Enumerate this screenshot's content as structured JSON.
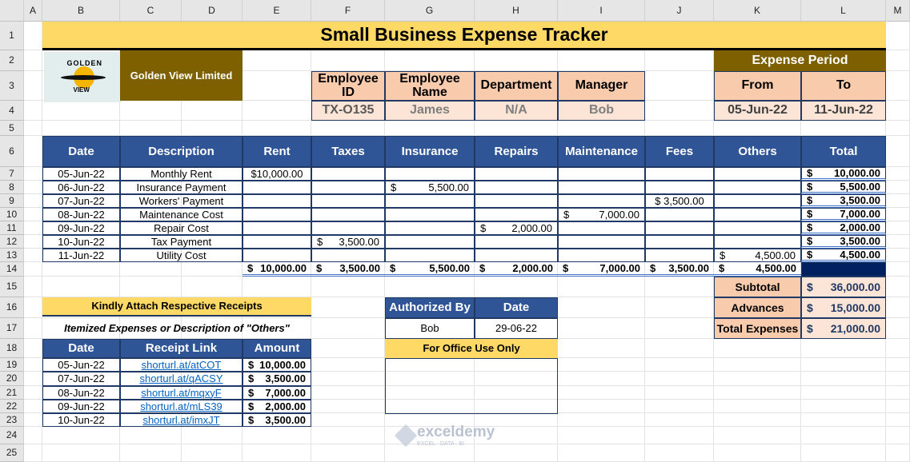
{
  "columns": [
    "A",
    "B",
    "C",
    "D",
    "E",
    "F",
    "G",
    "H",
    "I",
    "J",
    "K",
    "L",
    "M"
  ],
  "rows": [
    "1",
    "2",
    "3",
    "4",
    "5",
    "6",
    "7",
    "8",
    "9",
    "10",
    "11",
    "12",
    "13",
    "14",
    "15",
    "16",
    "17",
    "18",
    "19",
    "20",
    "21",
    "22",
    "23",
    "24",
    "25"
  ],
  "title": "Small Business Expense Tracker",
  "company": {
    "logo_text": "GOLDEN VIEW",
    "name": "Golden View Limited"
  },
  "employee": {
    "headers": [
      "Employee ID",
      "Employee Name",
      "Department",
      "Manager"
    ],
    "values": [
      "TX-O135",
      "James",
      "N/A",
      "Bob"
    ]
  },
  "period": {
    "title": "Expense Period",
    "from_label": "From",
    "to_label": "To",
    "from": "05-Jun-22",
    "to": "11-Jun-22"
  },
  "expenses": {
    "headers": [
      "Date",
      "Description",
      "Rent",
      "Taxes",
      "Insurance",
      "Repairs",
      "Maintenance",
      "Fees",
      "Others",
      "Total"
    ],
    "rows": [
      {
        "date": "05-Jun-22",
        "desc": "Monthly Rent",
        "cells": [
          "$10,000.00",
          "",
          "",
          "",
          "",
          "",
          ""
        ],
        "total": "10,000.00"
      },
      {
        "date": "06-Jun-22",
        "desc": "Insurance Payment",
        "cells": [
          "",
          "",
          "5,500.00",
          "",
          "",
          "",
          ""
        ],
        "total": "5,500.00"
      },
      {
        "date": "07-Jun-22",
        "desc": "Workers' Payment",
        "cells": [
          "",
          "",
          "",
          "",
          "",
          "$ 3,500.00",
          ""
        ],
        "total": "3,500.00"
      },
      {
        "date": "08-Jun-22",
        "desc": "Maintenance Cost",
        "cells": [
          "",
          "",
          "",
          "",
          "7,000.00",
          "",
          ""
        ],
        "total": "7,000.00"
      },
      {
        "date": "09-Jun-22",
        "desc": "Repair Cost",
        "cells": [
          "",
          "",
          "",
          "2,000.00",
          "",
          "",
          ""
        ],
        "total": "2,000.00"
      },
      {
        "date": "10-Jun-22",
        "desc": "Tax Payment",
        "cells": [
          "",
          "3,500.00",
          "",
          "",
          "",
          "",
          ""
        ],
        "total": "3,500.00"
      },
      {
        "date": "11-Jun-22",
        "desc": "Utility Cost",
        "cells": [
          "",
          "",
          "",
          "",
          "",
          "",
          "4,500.00"
        ],
        "total": "4,500.00"
      }
    ],
    "column_totals": [
      "10,000.00",
      "3,500.00",
      "5,500.00",
      "2,000.00",
      "7,000.00",
      "3,500.00",
      "4,500.00"
    ]
  },
  "summary": [
    {
      "label": "Subtotal",
      "value": "36,000.00"
    },
    {
      "label": "Advances",
      "value": "15,000.00"
    },
    {
      "label": "Total Expenses",
      "value": "21,000.00"
    }
  ],
  "receipts": {
    "banner": "Kindly Attach Respective Receipts",
    "subtitle": "Itemized Expenses or Description of \"Others\"",
    "headers": [
      "Date",
      "Receipt Link",
      "Amount"
    ],
    "rows": [
      {
        "date": "05-Jun-22",
        "link": "shorturl.at/atCOT",
        "amount": "10,000.00"
      },
      {
        "date": "07-Jun-22",
        "link": "shorturl.at/qACSY",
        "amount": "3,500.00"
      },
      {
        "date": "08-Jun-22",
        "link": "shorturl.at/mqxyF",
        "amount": "7,000.00"
      },
      {
        "date": "09-Jun-22",
        "link": "shorturl.at/mLS39",
        "amount": "2,000.00"
      },
      {
        "date": "10-Jun-22",
        "link": "shorturl.at/imxJT",
        "amount": "3,500.00"
      }
    ]
  },
  "authorization": {
    "headers": [
      "Authorized By",
      "Date"
    ],
    "values": [
      "Bob",
      "29-06-22"
    ],
    "office_label": "For Office Use Only"
  },
  "watermark": {
    "name": "exceldemy",
    "tagline": "EXCEL · DATA · BI"
  },
  "colors": {
    "title": "#ffd966",
    "brown": "#7f6000",
    "header_blue": "#2f5597",
    "navy": "#002060",
    "peach": "#f8cbad",
    "light_peach": "#fce4d6"
  }
}
